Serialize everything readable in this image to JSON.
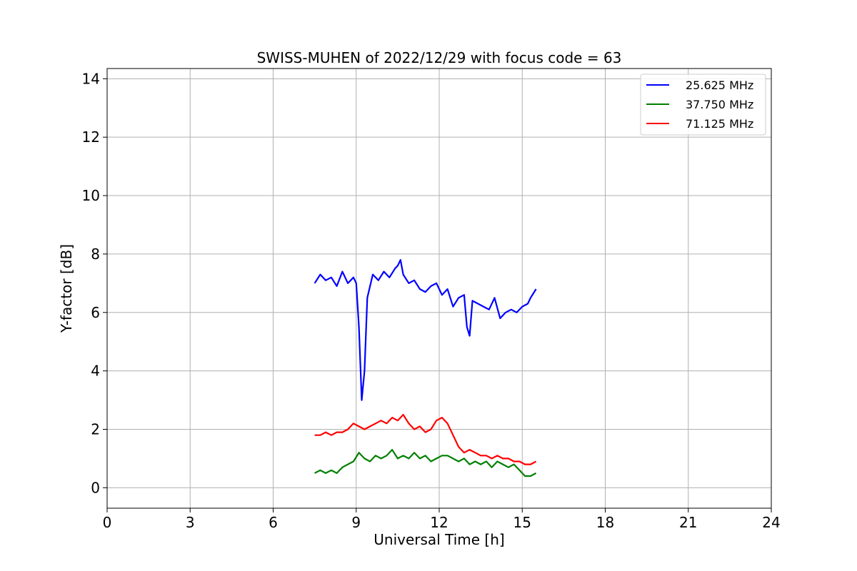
{
  "chart_data": {
    "type": "line",
    "title": "SWISS-MUHEN of 2022/12/29 with focus code = 63",
    "xlabel": "Universal Time [h]",
    "ylabel": "Y-factor [dB]",
    "xlim": [
      0,
      24
    ],
    "ylim": [
      -0.7,
      14.35
    ],
    "xticks": [
      0,
      3,
      6,
      9,
      12,
      15,
      18,
      21,
      24
    ],
    "yticks": [
      0,
      2,
      4,
      6,
      8,
      10,
      12,
      14
    ],
    "grid": true,
    "legend_position": "top-right",
    "series": [
      {
        "name": "25.625 MHz",
        "color": "#0000ff",
        "x": [
          7.5,
          7.7,
          7.9,
          8.1,
          8.3,
          8.5,
          8.7,
          8.9,
          9.0,
          9.1,
          9.2,
          9.3,
          9.4,
          9.6,
          9.8,
          10.0,
          10.2,
          10.4,
          10.5,
          10.6,
          10.7,
          10.9,
          11.1,
          11.3,
          11.5,
          11.7,
          11.9,
          12.1,
          12.3,
          12.5,
          12.7,
          12.9,
          13.0,
          13.1,
          13.2,
          13.4,
          13.6,
          13.8,
          14.0,
          14.2,
          14.4,
          14.6,
          14.8,
          15.0,
          15.2,
          15.3,
          15.5
        ],
        "y": [
          7.0,
          7.3,
          7.1,
          7.2,
          6.9,
          7.4,
          7.0,
          7.2,
          7.0,
          5.5,
          3.0,
          4.0,
          6.5,
          7.3,
          7.1,
          7.4,
          7.2,
          7.5,
          7.6,
          7.8,
          7.3,
          7.0,
          7.1,
          6.8,
          6.7,
          6.9,
          7.0,
          6.6,
          6.8,
          6.2,
          6.5,
          6.6,
          5.5,
          5.2,
          6.4,
          6.3,
          6.2,
          6.1,
          6.5,
          5.8,
          6.0,
          6.1,
          6.0,
          6.2,
          6.3,
          6.5,
          6.8
        ]
      },
      {
        "name": "37.750 MHz",
        "color": "#008000",
        "x": [
          7.5,
          7.7,
          7.9,
          8.1,
          8.3,
          8.5,
          8.7,
          8.9,
          9.1,
          9.3,
          9.5,
          9.7,
          9.9,
          10.1,
          10.3,
          10.5,
          10.7,
          10.9,
          11.1,
          11.3,
          11.5,
          11.7,
          11.9,
          12.1,
          12.3,
          12.5,
          12.7,
          12.9,
          13.1,
          13.3,
          13.5,
          13.7,
          13.9,
          14.1,
          14.3,
          14.5,
          14.7,
          14.9,
          15.1,
          15.3,
          15.5
        ],
        "y": [
          0.5,
          0.6,
          0.5,
          0.6,
          0.5,
          0.7,
          0.8,
          0.9,
          1.2,
          1.0,
          0.9,
          1.1,
          1.0,
          1.1,
          1.3,
          1.0,
          1.1,
          1.0,
          1.2,
          1.0,
          1.1,
          0.9,
          1.0,
          1.1,
          1.1,
          1.0,
          0.9,
          1.0,
          0.8,
          0.9,
          0.8,
          0.9,
          0.7,
          0.9,
          0.8,
          0.7,
          0.8,
          0.6,
          0.4,
          0.4,
          0.5
        ]
      },
      {
        "name": "71.125 MHz",
        "color": "#ff0000",
        "x": [
          7.5,
          7.7,
          7.9,
          8.1,
          8.3,
          8.5,
          8.7,
          8.9,
          9.1,
          9.3,
          9.5,
          9.7,
          9.9,
          10.1,
          10.3,
          10.5,
          10.7,
          10.9,
          11.1,
          11.3,
          11.5,
          11.7,
          11.9,
          12.1,
          12.3,
          12.5,
          12.7,
          12.9,
          13.1,
          13.3,
          13.5,
          13.7,
          13.9,
          14.1,
          14.3,
          14.5,
          14.7,
          14.9,
          15.1,
          15.3,
          15.5
        ],
        "y": [
          1.8,
          1.8,
          1.9,
          1.8,
          1.9,
          1.9,
          2.0,
          2.2,
          2.1,
          2.0,
          2.1,
          2.2,
          2.3,
          2.2,
          2.4,
          2.3,
          2.5,
          2.2,
          2.0,
          2.1,
          1.9,
          2.0,
          2.3,
          2.4,
          2.2,
          1.8,
          1.4,
          1.2,
          1.3,
          1.2,
          1.1,
          1.1,
          1.0,
          1.1,
          1.0,
          1.0,
          0.9,
          0.9,
          0.8,
          0.8,
          0.9
        ]
      }
    ],
    "annotations": []
  }
}
